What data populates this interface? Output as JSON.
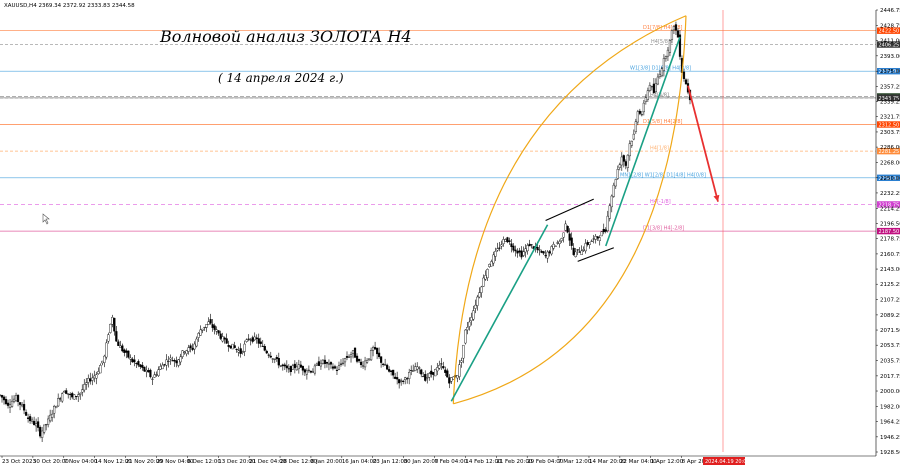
{
  "header": {
    "symbol_info": "XAUUSD,H4  2369.34 2372.92 2333.83 2344.58"
  },
  "annotations": {
    "title": "Волновой анализ ЗОЛОТА Н4",
    "subtitle": "( 14 апреля 2024 г.)"
  },
  "chart_data": {
    "type": "candlestick",
    "symbol": "XAUUSD",
    "timeframe": "H4",
    "ylim": [
      1928.5,
      2446.75
    ],
    "y_ticks": [
      "2446.75",
      "2428.75",
      "2411.00",
      "2393.00",
      "2375.00",
      "2357.25",
      "2339.25",
      "2321.75",
      "2303.75",
      "2286.00",
      "2268.00",
      "2250.00",
      "2232.25",
      "2214.25",
      "2196.50",
      "2178.75",
      "2160.75",
      "2143.00",
      "2125.25",
      "2107.25",
      "2089.25",
      "2071.50",
      "2053.75",
      "2035.75",
      "2017.75",
      "2000.00",
      "1982.00",
      "1964.25",
      "1946.25",
      "1928.50"
    ],
    "x_ticks": [
      "23 Oct 2023",
      "30 Oct 20:00",
      "7 Nov 04:00",
      "14 Nov 12:00",
      "21 Nov 20:00",
      "29 Nov 04:00",
      "6 Dec 12:00",
      "13 Dec 20:00",
      "21 Dec 04:00",
      "28 Dec 12:00",
      "8 Jan 20:00",
      "16 Jan 04:00",
      "23 Jan 12:00",
      "30 Jan 20:00",
      "7 Feb 04:00",
      "14 Feb 12:00",
      "21 Feb 20:00",
      "29 Feb 04:00",
      "7 Mar 12:00",
      "14 Mar 20:00",
      "22 Mar 04:00",
      "1 Apr 12:00",
      "8 Apr 20:00"
    ],
    "price_path": [
      [
        0,
        1995
      ],
      [
        2,
        1985
      ],
      [
        4,
        1992
      ],
      [
        6,
        1978
      ],
      [
        7,
        1968
      ],
      [
        9,
        1960
      ],
      [
        10,
        1950
      ],
      [
        12,
        1965
      ],
      [
        14,
        1985
      ],
      [
        16,
        2002
      ],
      [
        18,
        1992
      ],
      [
        20,
        1998
      ],
      [
        22,
        2012
      ],
      [
        24,
        2020
      ],
      [
        26,
        2040
      ],
      [
        27,
        2068
      ],
      [
        28,
        2088
      ],
      [
        29,
        2058
      ],
      [
        31,
        2045
      ],
      [
        33,
        2035
      ],
      [
        35,
        2028
      ],
      [
        37,
        2020
      ],
      [
        38,
        2015
      ],
      [
        40,
        2028
      ],
      [
        42,
        2038
      ],
      [
        44,
        2035
      ],
      [
        46,
        2048
      ],
      [
        48,
        2050
      ],
      [
        50,
        2072
      ],
      [
        52,
        2080
      ],
      [
        54,
        2070
      ],
      [
        56,
        2058
      ],
      [
        58,
        2052
      ],
      [
        60,
        2045
      ],
      [
        62,
        2062
      ],
      [
        64,
        2060
      ],
      [
        66,
        2048
      ],
      [
        68,
        2040
      ],
      [
        70,
        2030
      ],
      [
        72,
        2024
      ],
      [
        74,
        2030
      ],
      [
        76,
        2025
      ],
      [
        78,
        2024
      ],
      [
        80,
        2035
      ],
      [
        82,
        2030
      ],
      [
        84,
        2025
      ],
      [
        86,
        2038
      ],
      [
        88,
        2045
      ],
      [
        90,
        2030
      ],
      [
        92,
        2040
      ],
      [
        93,
        2050
      ],
      [
        95,
        2035
      ],
      [
        97,
        2022
      ],
      [
        100,
        2010
      ],
      [
        102,
        2020
      ],
      [
        104,
        2028
      ],
      [
        106,
        2015
      ],
      [
        108,
        2022
      ],
      [
        110,
        2030
      ],
      [
        112,
        2012
      ],
      [
        114,
        2020
      ],
      [
        115,
        2038
      ],
      [
        116,
        2070
      ],
      [
        118,
        2095
      ],
      [
        120,
        2125
      ],
      [
        122,
        2150
      ],
      [
        124,
        2165
      ],
      [
        126,
        2180
      ],
      [
        128,
        2168
      ],
      [
        130,
        2160
      ],
      [
        132,
        2172
      ],
      [
        134,
        2165
      ],
      [
        136,
        2158
      ],
      [
        138,
        2170
      ],
      [
        140,
        2178
      ],
      [
        141,
        2198
      ],
      [
        142,
        2178
      ],
      [
        143,
        2160
      ],
      [
        145,
        2166
      ],
      [
        147,
        2175
      ],
      [
        149,
        2180
      ],
      [
        151,
        2190
      ],
      [
        152,
        2220
      ],
      [
        153,
        2240
      ],
      [
        154,
        2260
      ],
      [
        155,
        2275
      ],
      [
        156,
        2265
      ],
      [
        157,
        2290
      ],
      [
        158,
        2300
      ],
      [
        159,
        2330
      ],
      [
        160,
        2325
      ],
      [
        161,
        2345
      ],
      [
        162,
        2360
      ],
      [
        163,
        2350
      ],
      [
        164,
        2368
      ],
      [
        165,
        2380
      ],
      [
        166,
        2395
      ],
      [
        167,
        2410
      ],
      [
        168,
        2430
      ],
      [
        169,
        2415
      ],
      [
        170,
        2375
      ],
      [
        171,
        2360
      ],
      [
        172,
        2344
      ]
    ],
    "levels": [
      {
        "label": "D1[7/8] H4[6/8]",
        "price": "2422.50"
      },
      {
        "label": "H4[5/8]",
        "price": "2406.25"
      },
      {
        "label": "W1[3/8] D1[6/8] H4[3/8]",
        "price": "2375.00"
      },
      {
        "label": "",
        "price": "2345.42"
      },
      {
        "label": "",
        "price": "2343.75"
      },
      {
        "label": "H4[4/8]",
        "price": "2343.75"
      },
      {
        "label": "D1[5/8] H4[2/8]",
        "price": "2312.50"
      },
      {
        "label": "H4[1/8]",
        "price": "2281.25"
      },
      {
        "label": "MN1[2/8] W1[2/8] D1[4/8] H4[0/8]",
        "price": "2250.00"
      },
      {
        "label": "H4[-1/8]",
        "price": "2218.75"
      },
      {
        "label": "D1[3/8] H4[-2/8]",
        "price": "2187.50"
      }
    ],
    "x_cursor_label": "2024.04.19 20:00"
  }
}
